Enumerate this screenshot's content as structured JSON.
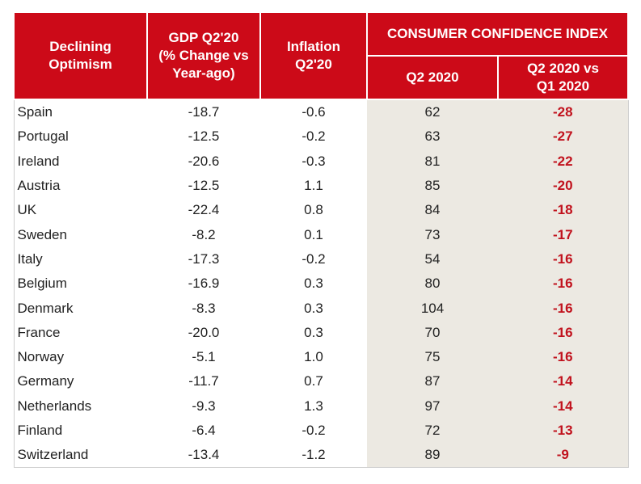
{
  "header": {
    "col1": [
      "Declining",
      "Optimism"
    ],
    "col2": [
      "GDP Q2'20",
      "(% Change vs",
      "Year-ago)"
    ],
    "col3": [
      "Inflation",
      "Q2'20"
    ],
    "group": "CONSUMER CONFIDENCE INDEX",
    "col4": "Q2 2020",
    "col5": [
      "Q2 2020 vs",
      "Q1 2020"
    ]
  },
  "rows": [
    {
      "country": "Spain",
      "gdp": "-18.7",
      "inflation": "-0.6",
      "cci": "62",
      "change": "-28"
    },
    {
      "country": "Portugal",
      "gdp": "-12.5",
      "inflation": "-0.2",
      "cci": "63",
      "change": "-27"
    },
    {
      "country": "Ireland",
      "gdp": "-20.6",
      "inflation": "-0.3",
      "cci": "81",
      "change": "-22"
    },
    {
      "country": "Austria",
      "gdp": "-12.5",
      "inflation": "1.1",
      "cci": "85",
      "change": "-20"
    },
    {
      "country": "UK",
      "gdp": "-22.4",
      "inflation": "0.8",
      "cci": "84",
      "change": "-18"
    },
    {
      "country": "Sweden",
      "gdp": "-8.2",
      "inflation": "0.1",
      "cci": "73",
      "change": "-17"
    },
    {
      "country": "Italy",
      "gdp": "-17.3",
      "inflation": "-0.2",
      "cci": "54",
      "change": "-16"
    },
    {
      "country": "Belgium",
      "gdp": "-16.9",
      "inflation": "0.3",
      "cci": "80",
      "change": "-16"
    },
    {
      "country": "Denmark",
      "gdp": "-8.3",
      "inflation": "0.3",
      "cci": "104",
      "change": "-16"
    },
    {
      "country": "France",
      "gdp": "-20.0",
      "inflation": "0.3",
      "cci": "70",
      "change": "-16"
    },
    {
      "country": "Norway",
      "gdp": "-5.1",
      "inflation": "1.0",
      "cci": "75",
      "change": "-16"
    },
    {
      "country": "Germany",
      "gdp": "-11.7",
      "inflation": "0.7",
      "cci": "87",
      "change": "-14"
    },
    {
      "country": "Netherlands",
      "gdp": "-9.3",
      "inflation": "1.3",
      "cci": "97",
      "change": "-14"
    },
    {
      "country": "Finland",
      "gdp": "-6.4",
      "inflation": "-0.2",
      "cci": "72",
      "change": "-13"
    },
    {
      "country": "Switzerland",
      "gdp": "-13.4",
      "inflation": "-1.2",
      "cci": "89",
      "change": "-9"
    }
  ],
  "colors": {
    "header": "#cc0a18",
    "shade": "#ece9e2",
    "delta": "#c1121d"
  }
}
